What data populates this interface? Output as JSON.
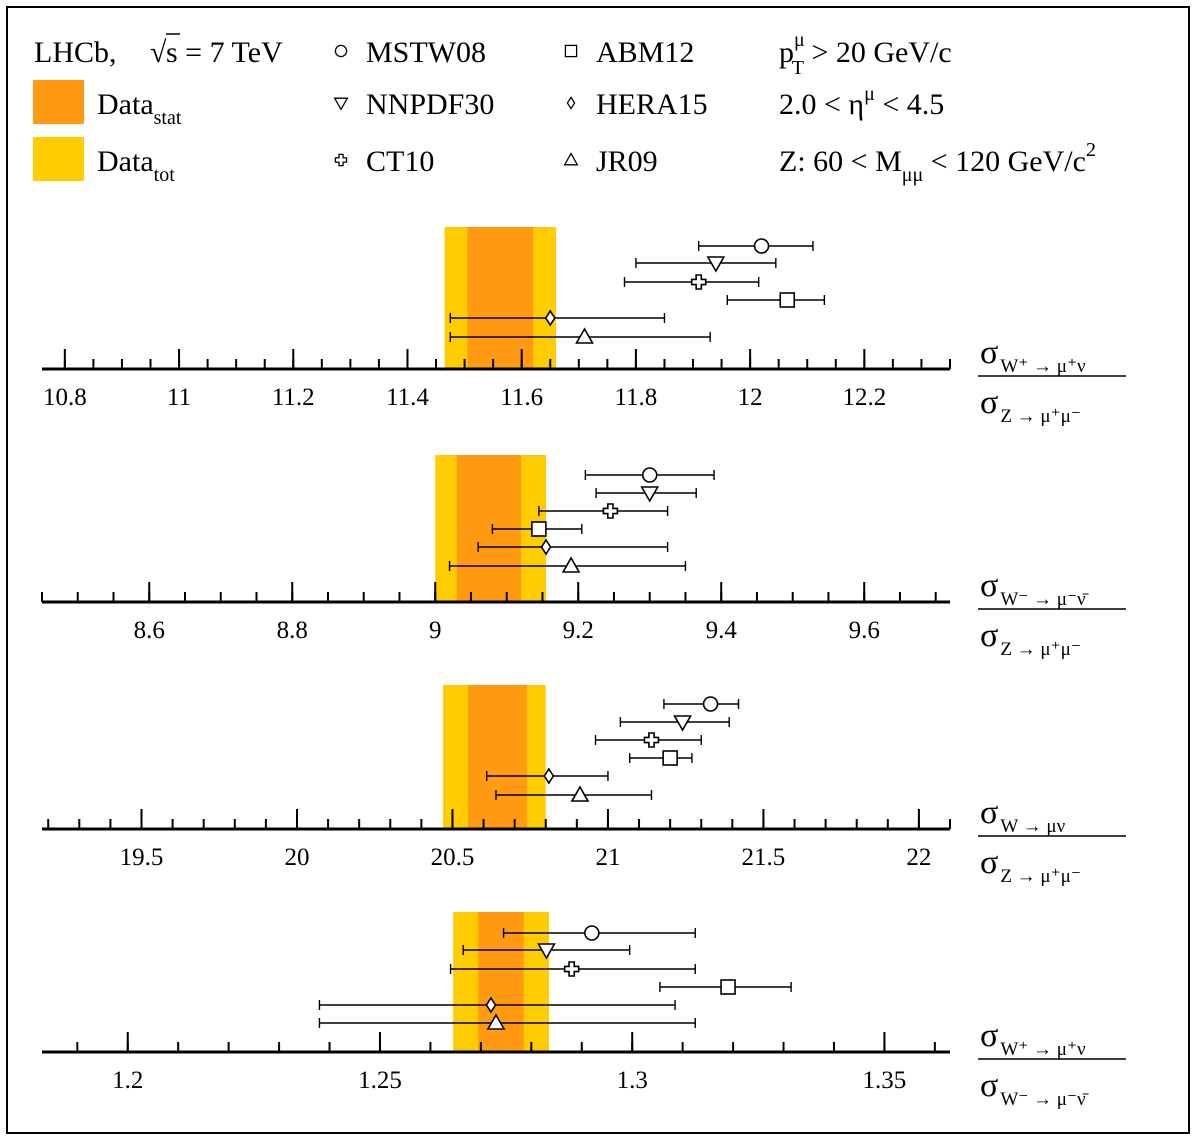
{
  "legend": {
    "experiment_label": "LHCb,",
    "sqrt_symbol": "√",
    "energy_expr": "s = 7 TeV",
    "data_stat_main": "Data",
    "data_stat_sub": "stat",
    "data_tot_main": "Data",
    "data_tot_sub": "tot",
    "pdfs": [
      {
        "marker": "circle",
        "label": "MSTW08"
      },
      {
        "marker": "triangle-down",
        "label": "NNPDF30"
      },
      {
        "marker": "cross",
        "label": "CT10"
      },
      {
        "marker": "square",
        "label": "ABM12"
      },
      {
        "marker": "diamond",
        "label": "HERA15"
      },
      {
        "marker": "triangle-up",
        "label": "JR09"
      }
    ],
    "cuts": {
      "pt_p": "p",
      "pt_sup": "μ",
      "pt_sub": "T",
      "pt_rest": " > 20 GeV/c",
      "eta_pre": "2.0 < η",
      "eta_sup": "μ",
      "eta_rest": " < 4.5",
      "mass_pre": "Z: 60 < M",
      "mass_sub": "μμ",
      "mass_rest": " < 120 GeV/c",
      "mass_sup": "2"
    }
  },
  "colors": {
    "stat_band": "#ff9a12",
    "tot_band": "#ffcc00",
    "ink": "#000000",
    "background": "#ffffff"
  },
  "chart_data": [
    {
      "type": "scatter",
      "ratio_numerator": {
        "main": "σ",
        "sub": "W⁺ → μ⁺ν"
      },
      "ratio_denominator": {
        "main": "σ",
        "sub": "Z → μ⁺μ⁻"
      },
      "xlim": [
        10.76,
        12.35
      ],
      "major_ticks": [
        10.8,
        11.0,
        11.2,
        11.4,
        11.6,
        11.8,
        12.0,
        12.2
      ],
      "tick_labels": [
        "10.8",
        "11",
        "11.2",
        "11.4",
        "11.6",
        "11.8",
        "12",
        "12.2"
      ],
      "minor_step": 0.05,
      "data_stat": [
        11.505,
        11.62
      ],
      "data_tot": [
        11.465,
        11.66
      ],
      "points": [
        {
          "marker": "circle",
          "value": 12.02,
          "err_lo": 11.91,
          "err_hi": 12.11
        },
        {
          "marker": "triangle-down",
          "value": 11.94,
          "err_lo": 11.8,
          "err_hi": 12.045
        },
        {
          "marker": "cross",
          "value": 11.91,
          "err_lo": 11.78,
          "err_hi": 12.015
        },
        {
          "marker": "square",
          "value": 12.065,
          "err_lo": 11.96,
          "err_hi": 12.13
        },
        {
          "marker": "diamond",
          "value": 11.65,
          "err_lo": 11.475,
          "err_hi": 11.85
        },
        {
          "marker": "triangle-up",
          "value": 11.71,
          "err_lo": 11.475,
          "err_hi": 11.93
        }
      ]
    },
    {
      "type": "scatter",
      "ratio_numerator": {
        "main": "σ",
        "sub": "W⁻ → μ⁻ν̄"
      },
      "ratio_denominator": {
        "main": "σ",
        "sub": "Z → μ⁺μ⁻"
      },
      "xlim": [
        8.45,
        9.72
      ],
      "major_ticks": [
        8.6,
        8.8,
        9.0,
        9.2,
        9.4,
        9.6
      ],
      "tick_labels": [
        "8.6",
        "8.8",
        "9",
        "9.2",
        "9.4",
        "9.6"
      ],
      "minor_step": 0.05,
      "data_stat": [
        9.03,
        9.12
      ],
      "data_tot": [
        9.0,
        9.155
      ],
      "points": [
        {
          "marker": "circle",
          "value": 9.3,
          "err_lo": 9.21,
          "err_hi": 9.39
        },
        {
          "marker": "triangle-down",
          "value": 9.3,
          "err_lo": 9.225,
          "err_hi": 9.365
        },
        {
          "marker": "cross",
          "value": 9.245,
          "err_lo": 9.145,
          "err_hi": 9.325
        },
        {
          "marker": "square",
          "value": 9.145,
          "err_lo": 9.08,
          "err_hi": 9.205
        },
        {
          "marker": "diamond",
          "value": 9.155,
          "err_lo": 9.06,
          "err_hi": 9.325
        },
        {
          "marker": "triangle-up",
          "value": 9.19,
          "err_lo": 9.02,
          "err_hi": 9.35
        }
      ]
    },
    {
      "type": "scatter",
      "ratio_numerator": {
        "main": "σ",
        "sub": "W → μν"
      },
      "ratio_denominator": {
        "main": "σ",
        "sub": "Z → μ⁺μ⁻"
      },
      "xlim": [
        19.18,
        22.1
      ],
      "major_ticks": [
        19.5,
        20.0,
        20.5,
        21.0,
        21.5,
        22.0
      ],
      "tick_labels": [
        "19.5",
        "20",
        "20.5",
        "21",
        "21.5",
        "22"
      ],
      "minor_step": 0.1,
      "data_stat": [
        20.55,
        20.74
      ],
      "data_tot": [
        20.47,
        20.8
      ],
      "points": [
        {
          "marker": "circle",
          "value": 21.33,
          "err_lo": 21.18,
          "err_hi": 21.42
        },
        {
          "marker": "triangle-down",
          "value": 21.24,
          "err_lo": 21.04,
          "err_hi": 21.39
        },
        {
          "marker": "cross",
          "value": 21.14,
          "err_lo": 20.96,
          "err_hi": 21.3
        },
        {
          "marker": "square",
          "value": 21.2,
          "err_lo": 21.07,
          "err_hi": 21.27
        },
        {
          "marker": "diamond",
          "value": 20.81,
          "err_lo": 20.61,
          "err_hi": 21.0
        },
        {
          "marker": "triangle-up",
          "value": 20.91,
          "err_lo": 20.64,
          "err_hi": 21.14
        }
      ]
    },
    {
      "type": "scatter",
      "ratio_numerator": {
        "main": "σ",
        "sub": "W⁺ → μ⁺ν"
      },
      "ratio_denominator": {
        "main": "σ",
        "sub": "W⁻ → μ⁻ν̄"
      },
      "xlim": [
        1.183,
        1.363
      ],
      "major_ticks": [
        1.2,
        1.25,
        1.3,
        1.35
      ],
      "tick_labels": [
        "1.2",
        "1.25",
        "1.3",
        "1.35"
      ],
      "minor_step": 0.01,
      "data_stat": [
        1.2695,
        1.2785
      ],
      "data_tot": [
        1.2645,
        1.2835
      ],
      "points": [
        {
          "marker": "circle",
          "value": 1.292,
          "err_lo": 1.2745,
          "err_hi": 1.3125
        },
        {
          "marker": "triangle-down",
          "value": 1.283,
          "err_lo": 1.2665,
          "err_hi": 1.2995
        },
        {
          "marker": "cross",
          "value": 1.288,
          "err_lo": 1.264,
          "err_hi": 1.3125
        },
        {
          "marker": "square",
          "value": 1.319,
          "err_lo": 1.3055,
          "err_hi": 1.3315
        },
        {
          "marker": "diamond",
          "value": 1.272,
          "err_lo": 1.238,
          "err_hi": 1.3085
        },
        {
          "marker": "triangle-up",
          "value": 1.273,
          "err_lo": 1.238,
          "err_hi": 1.3125
        }
      ]
    }
  ]
}
